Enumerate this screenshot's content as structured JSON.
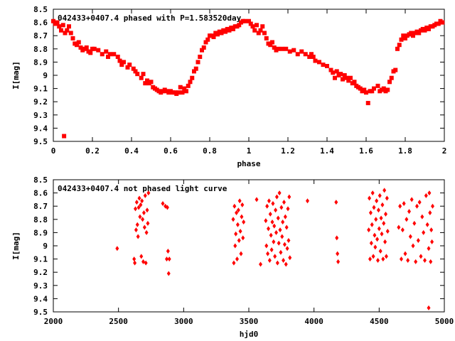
{
  "chart_data": [
    {
      "type": "scatter",
      "title": "042433+0407.4 phased with P=1.583520day",
      "xlabel": "phase",
      "ylabel": "I[mag]",
      "xlim": [
        0,
        2
      ],
      "ylim": [
        8.5,
        9.5
      ],
      "y_inverted": true,
      "xticks": [
        "0",
        "0.2",
        "0.4",
        "0.6",
        "0.8",
        "1",
        "1.2",
        "1.4",
        "1.6",
        "1.8",
        "2"
      ],
      "yticks": [
        "8.5",
        "8.6",
        "8.7",
        "8.8",
        "8.9",
        "9",
        "9.1",
        "9.2",
        "9.3",
        "9.4",
        "9.5"
      ],
      "grid": false,
      "marker": "filled-square",
      "color": "#ff0000",
      "points": [
        [
          0.0,
          8.59
        ],
        [
          0.01,
          8.61
        ],
        [
          0.02,
          8.6
        ],
        [
          0.03,
          8.63
        ],
        [
          0.04,
          8.66
        ],
        [
          0.05,
          8.62
        ],
        [
          0.055,
          9.46
        ],
        [
          0.06,
          8.68
        ],
        [
          0.07,
          8.66
        ],
        [
          0.08,
          8.63
        ],
        [
          0.09,
          8.68
        ],
        [
          0.1,
          8.72
        ],
        [
          0.11,
          8.76
        ],
        [
          0.12,
          8.77
        ],
        [
          0.13,
          8.75
        ],
        [
          0.14,
          8.79
        ],
        [
          0.15,
          8.81
        ],
        [
          0.16,
          8.8
        ],
        [
          0.17,
          8.79
        ],
        [
          0.18,
          8.82
        ],
        [
          0.19,
          8.83
        ],
        [
          0.2,
          8.8
        ],
        [
          0.21,
          8.8
        ],
        [
          0.23,
          8.81
        ],
        [
          0.25,
          8.84
        ],
        [
          0.27,
          8.82
        ],
        [
          0.28,
          8.86
        ],
        [
          0.29,
          8.84
        ],
        [
          0.31,
          8.84
        ],
        [
          0.33,
          8.86
        ],
        [
          0.34,
          8.89
        ],
        [
          0.35,
          8.92
        ],
        [
          0.36,
          8.9
        ],
        [
          0.38,
          8.94
        ],
        [
          0.39,
          8.92
        ],
        [
          0.41,
          8.95
        ],
        [
          0.42,
          8.97
        ],
        [
          0.43,
          8.99
        ],
        [
          0.45,
          9.02
        ],
        [
          0.46,
          8.99
        ],
        [
          0.47,
          9.06
        ],
        [
          0.48,
          9.04
        ],
        [
          0.49,
          9.06
        ],
        [
          0.5,
          9.05
        ],
        [
          0.51,
          9.09
        ],
        [
          0.52,
          9.1
        ],
        [
          0.53,
          9.11
        ],
        [
          0.54,
          9.12
        ],
        [
          0.55,
          9.13
        ],
        [
          0.56,
          9.12
        ],
        [
          0.57,
          9.11
        ],
        [
          0.58,
          9.12
        ],
        [
          0.59,
          9.13
        ],
        [
          0.6,
          9.12
        ],
        [
          0.61,
          9.13
        ],
        [
          0.62,
          9.13
        ],
        [
          0.63,
          9.14
        ],
        [
          0.64,
          9.13
        ],
        [
          0.65,
          9.09
        ],
        [
          0.66,
          9.13
        ],
        [
          0.67,
          9.1
        ],
        [
          0.68,
          9.12
        ],
        [
          0.69,
          9.08
        ],
        [
          0.7,
          9.05
        ],
        [
          0.71,
          9.02
        ],
        [
          0.72,
          8.97
        ],
        [
          0.73,
          8.95
        ],
        [
          0.74,
          8.9
        ],
        [
          0.75,
          8.86
        ],
        [
          0.76,
          8.81
        ],
        [
          0.77,
          8.79
        ],
        [
          0.78,
          8.75
        ],
        [
          0.79,
          8.73
        ],
        [
          0.8,
          8.7
        ],
        [
          0.81,
          8.7
        ],
        [
          0.82,
          8.71
        ],
        [
          0.83,
          8.68
        ],
        [
          0.84,
          8.69
        ],
        [
          0.85,
          8.67
        ],
        [
          0.86,
          8.68
        ],
        [
          0.87,
          8.66
        ],
        [
          0.88,
          8.67
        ],
        [
          0.89,
          8.65
        ],
        [
          0.9,
          8.66
        ],
        [
          0.91,
          8.64
        ],
        [
          0.92,
          8.65
        ],
        [
          0.93,
          8.63
        ],
        [
          0.94,
          8.63
        ],
        [
          0.95,
          8.62
        ],
        [
          0.96,
          8.6
        ],
        [
          0.97,
          8.59
        ],
        [
          0.98,
          8.59
        ],
        [
          1.0,
          8.59
        ],
        [
          1.01,
          8.61
        ],
        [
          1.02,
          8.63
        ],
        [
          1.03,
          8.66
        ],
        [
          1.04,
          8.62
        ],
        [
          1.05,
          8.68
        ],
        [
          1.06,
          8.66
        ],
        [
          1.07,
          8.63
        ],
        [
          1.08,
          8.68
        ],
        [
          1.09,
          8.72
        ],
        [
          1.1,
          8.76
        ],
        [
          1.11,
          8.77
        ],
        [
          1.12,
          8.75
        ],
        [
          1.13,
          8.79
        ],
        [
          1.14,
          8.81
        ],
        [
          1.15,
          8.8
        ],
        [
          1.17,
          8.8
        ],
        [
          1.19,
          8.8
        ],
        [
          1.21,
          8.82
        ],
        [
          1.23,
          8.81
        ],
        [
          1.25,
          8.84
        ],
        [
          1.27,
          8.82
        ],
        [
          1.29,
          8.84
        ],
        [
          1.31,
          8.86
        ],
        [
          1.32,
          8.84
        ],
        [
          1.33,
          8.86
        ],
        [
          1.34,
          8.89
        ],
        [
          1.36,
          8.9
        ],
        [
          1.38,
          8.92
        ],
        [
          1.4,
          8.93
        ],
        [
          1.42,
          8.96
        ],
        [
          1.43,
          8.98
        ],
        [
          1.44,
          9.02
        ],
        [
          1.45,
          8.97
        ],
        [
          1.46,
          9.0
        ],
        [
          1.47,
          8.99
        ],
        [
          1.48,
          9.03
        ],
        [
          1.49,
          9.0
        ],
        [
          1.5,
          9.02
        ],
        [
          1.51,
          9.04
        ],
        [
          1.52,
          9.02
        ],
        [
          1.53,
          9.06
        ],
        [
          1.54,
          9.05
        ],
        [
          1.55,
          9.08
        ],
        [
          1.56,
          9.09
        ],
        [
          1.57,
          9.1
        ],
        [
          1.58,
          9.12
        ],
        [
          1.59,
          9.11
        ],
        [
          1.6,
          9.13
        ],
        [
          1.61,
          9.21
        ],
        [
          1.62,
          9.12
        ],
        [
          1.63,
          9.12
        ],
        [
          1.64,
          9.1
        ],
        [
          1.66,
          9.08
        ],
        [
          1.67,
          9.12
        ],
        [
          1.68,
          9.11
        ],
        [
          1.69,
          9.1
        ],
        [
          1.7,
          9.12
        ],
        [
          1.71,
          9.11
        ],
        [
          1.72,
          9.05
        ],
        [
          1.73,
          9.02
        ],
        [
          1.74,
          8.97
        ],
        [
          1.75,
          8.96
        ],
        [
          1.76,
          8.8
        ],
        [
          1.77,
          8.77
        ],
        [
          1.78,
          8.73
        ],
        [
          1.79,
          8.7
        ],
        [
          1.8,
          8.72
        ],
        [
          1.81,
          8.7
        ],
        [
          1.82,
          8.69
        ],
        [
          1.83,
          8.68
        ],
        [
          1.84,
          8.7
        ],
        [
          1.85,
          8.68
        ],
        [
          1.86,
          8.67
        ],
        [
          1.87,
          8.68
        ],
        [
          1.88,
          8.66
        ],
        [
          1.89,
          8.65
        ],
        [
          1.9,
          8.66
        ],
        [
          1.91,
          8.64
        ],
        [
          1.92,
          8.65
        ],
        [
          1.93,
          8.63
        ],
        [
          1.94,
          8.63
        ],
        [
          1.95,
          8.62
        ],
        [
          1.96,
          8.61
        ],
        [
          1.97,
          8.61
        ],
        [
          1.98,
          8.59
        ],
        [
          1.99,
          8.6
        ]
      ]
    },
    {
      "type": "scatter",
      "title": "042433+0407.4 not phased light curve",
      "xlabel": "hjd0",
      "ylabel": "I[mag]",
      "xlim": [
        2000,
        5000
      ],
      "ylim": [
        8.5,
        9.5
      ],
      "y_inverted": true,
      "xticks": [
        "2000",
        "2500",
        "3000",
        "3500",
        "4000",
        "4500",
        "5000"
      ],
      "yticks": [
        "8.5",
        "8.6",
        "8.7",
        "8.8",
        "8.9",
        "9",
        "9.1",
        "9.2",
        "9.3",
        "9.4",
        "9.5"
      ],
      "grid": false,
      "marker": "filled-diamond",
      "color": "#ff0000",
      "points": [
        [
          2490,
          9.02
        ],
        [
          2620,
          9.1
        ],
        [
          2625,
          9.13
        ],
        [
          2630,
          8.72
        ],
        [
          2635,
          8.88
        ],
        [
          2640,
          8.67
        ],
        [
          2645,
          8.84
        ],
        [
          2650,
          8.93
        ],
        [
          2655,
          8.71
        ],
        [
          2660,
          8.64
        ],
        [
          2665,
          8.78
        ],
        [
          2670,
          8.69
        ],
        [
          2675,
          9.08
        ],
        [
          2680,
          8.66
        ],
        [
          2685,
          8.8
        ],
        [
          2690,
          9.12
        ],
        [
          2695,
          8.75
        ],
        [
          2700,
          8.86
        ],
        [
          2705,
          8.62
        ],
        [
          2710,
          9.13
        ],
        [
          2715,
          8.9
        ],
        [
          2720,
          8.73
        ],
        [
          2725,
          8.83
        ],
        [
          2730,
          8.6
        ],
        [
          2840,
          8.68
        ],
        [
          2860,
          8.7
        ],
        [
          2870,
          9.1
        ],
        [
          2875,
          8.71
        ],
        [
          2880,
          9.04
        ],
        [
          2885,
          9.21
        ],
        [
          2890,
          9.1
        ],
        [
          3380,
          8.8
        ],
        [
          3385,
          9.13
        ],
        [
          3390,
          8.7
        ],
        [
          3395,
          9.0
        ],
        [
          3400,
          8.91
        ],
        [
          3405,
          8.75
        ],
        [
          3410,
          9.1
        ],
        [
          3415,
          8.84
        ],
        [
          3420,
          8.73
        ],
        [
          3425,
          8.96
        ],
        [
          3430,
          8.66
        ],
        [
          3435,
          8.89
        ],
        [
          3440,
          9.06
        ],
        [
          3445,
          8.78
        ],
        [
          3450,
          8.69
        ],
        [
          3455,
          8.94
        ],
        [
          3460,
          8.82
        ],
        [
          3560,
          8.65
        ],
        [
          3590,
          9.14
        ],
        [
          3630,
          8.81
        ],
        [
          3635,
          9.0
        ],
        [
          3640,
          8.7
        ],
        [
          3645,
          9.06
        ],
        [
          3650,
          8.87
        ],
        [
          3655,
          8.66
        ],
        [
          3660,
          9.11
        ],
        [
          3665,
          8.76
        ],
        [
          3670,
          8.92
        ],
        [
          3675,
          9.03
        ],
        [
          3680,
          8.82
        ],
        [
          3685,
          8.68
        ],
        [
          3690,
          8.97
        ],
        [
          3695,
          8.85
        ],
        [
          3700,
          9.08
        ],
        [
          3705,
          8.73
        ],
        [
          3710,
          8.9
        ],
        [
          3715,
          8.63
        ],
        [
          3720,
          9.13
        ],
        [
          3725,
          8.79
        ],
        [
          3730,
          8.98
        ],
        [
          3735,
          8.6
        ],
        [
          3740,
          8.88
        ],
        [
          3745,
          9.05
        ],
        [
          3750,
          8.71
        ],
        [
          3755,
          8.93
        ],
        [
          3760,
          8.82
        ],
        [
          3765,
          9.11
        ],
        [
          3770,
          8.67
        ],
        [
          3775,
          8.99
        ],
        [
          3780,
          8.78
        ],
        [
          3785,
          9.14
        ],
        [
          3790,
          8.86
        ],
        [
          3795,
          9.02
        ],
        [
          3800,
          8.72
        ],
        [
          3805,
          8.96
        ],
        [
          3810,
          8.63
        ],
        [
          3815,
          9.09
        ],
        [
          3950,
          8.66
        ],
        [
          4170,
          8.67
        ],
        [
          4175,
          8.94
        ],
        [
          4180,
          9.06
        ],
        [
          4185,
          9.12
        ],
        [
          4420,
          8.88
        ],
        [
          4425,
          8.64
        ],
        [
          4430,
          9.1
        ],
        [
          4435,
          8.75
        ],
        [
          4440,
          8.98
        ],
        [
          4445,
          8.84
        ],
        [
          4450,
          8.6
        ],
        [
          4455,
          9.08
        ],
        [
          4460,
          8.71
        ],
        [
          4465,
          8.92
        ],
        [
          4470,
          9.01
        ],
        [
          4475,
          8.8
        ],
        [
          4480,
          8.66
        ],
        [
          4485,
          8.95
        ],
        [
          4490,
          9.11
        ],
        [
          4495,
          8.73
        ],
        [
          4500,
          8.87
        ],
        [
          4505,
          8.62
        ],
        [
          4510,
          9.04
        ],
        [
          4515,
          8.79
        ],
        [
          4520,
          8.91
        ],
        [
          4525,
          8.69
        ],
        [
          4530,
          9.1
        ],
        [
          4535,
          8.83
        ],
        [
          4540,
          8.58
        ],
        [
          4545,
          8.97
        ],
        [
          4550,
          8.76
        ],
        [
          4555,
          9.08
        ],
        [
          4560,
          8.64
        ],
        [
          4565,
          8.89
        ],
        [
          4650,
          8.86
        ],
        [
          4660,
          8.7
        ],
        [
          4670,
          9.1
        ],
        [
          4680,
          8.88
        ],
        [
          4690,
          8.68
        ],
        [
          4700,
          9.06
        ],
        [
          4710,
          8.8
        ],
        [
          4720,
          9.11
        ],
        [
          4730,
          8.74
        ],
        [
          4740,
          8.93
        ],
        [
          4750,
          8.65
        ],
        [
          4760,
          9.0
        ],
        [
          4770,
          8.83
        ],
        [
          4780,
          9.12
        ],
        [
          4790,
          8.7
        ],
        [
          4800,
          8.96
        ],
        [
          4810,
          8.67
        ],
        [
          4820,
          9.08
        ],
        [
          4830,
          8.78
        ],
        [
          4840,
          8.9
        ],
        [
          4850,
          9.11
        ],
        [
          4860,
          8.62
        ],
        [
          4870,
          8.84
        ],
        [
          4880,
          9.02
        ],
        [
          4885,
          8.6
        ],
        [
          4890,
          8.75
        ],
        [
          4895,
          9.12
        ],
        [
          4900,
          8.88
        ],
        [
          4905,
          8.97
        ],
        [
          4910,
          8.7
        ],
        [
          4880,
          9.47
        ]
      ]
    }
  ]
}
